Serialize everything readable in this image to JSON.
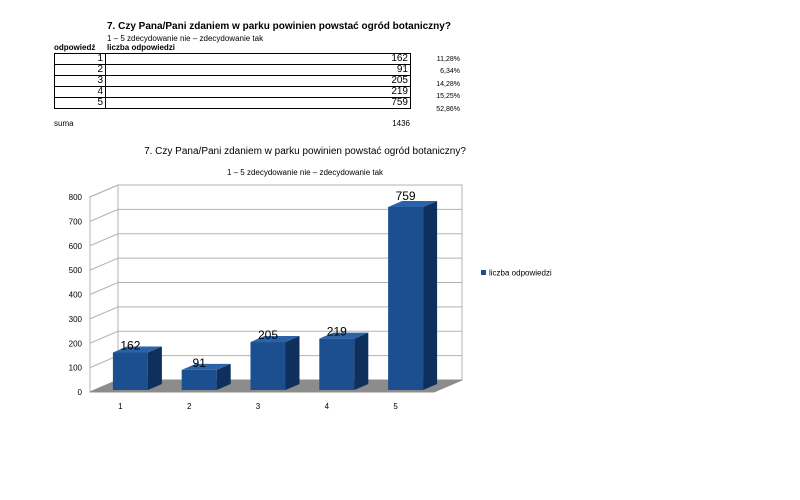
{
  "table": {
    "title": "7. Czy Pana/Pani zdaniem w parku powinien powstać ogród botaniczny?",
    "subtitle": "1 – 5 zdecydowanie nie – zdecydowanie tak",
    "col_answer": "odpowiedź",
    "col_count": "liczba odpowiedzi",
    "rows": [
      {
        "answer": "1",
        "count": "162",
        "percent": "11,28%"
      },
      {
        "answer": "2",
        "count": "91",
        "percent": "6,34%"
      },
      {
        "answer": "3",
        "count": "205",
        "percent": "14,28%"
      },
      {
        "answer": "4",
        "count": "219",
        "percent": "15,25%"
      },
      {
        "answer": "5",
        "count": "759",
        "percent": "52,86%"
      }
    ],
    "sum_label": "suma",
    "sum_value": "1436"
  },
  "chart_data": {
    "type": "bar",
    "title": "7. Czy Pana/Pani zdaniem w parku powinien powstać ogród botaniczny?",
    "subtitle": "1 – 5 zdecydowanie nie – zdecydowanie tak",
    "categories": [
      "1",
      "2",
      "3",
      "4",
      "5"
    ],
    "series": [
      {
        "name": "liczba odpowiedzi",
        "values": [
          162,
          91,
          205,
          219,
          759
        ]
      }
    ],
    "data_labels": [
      "162",
      "91",
      "205",
      "219",
      "759"
    ],
    "ylim": [
      0,
      800
    ],
    "yticks": [
      "0",
      "100",
      "200",
      "300",
      "400",
      "500",
      "600",
      "700",
      "800"
    ],
    "grid": true,
    "legend": "right",
    "colors": {
      "bar_front": "#1c4f8f",
      "bar_side": "#0f2f5c",
      "bar_top": "#2b63a8",
      "floor": "#8c8c8c",
      "grid": "#b3b3b3"
    }
  }
}
